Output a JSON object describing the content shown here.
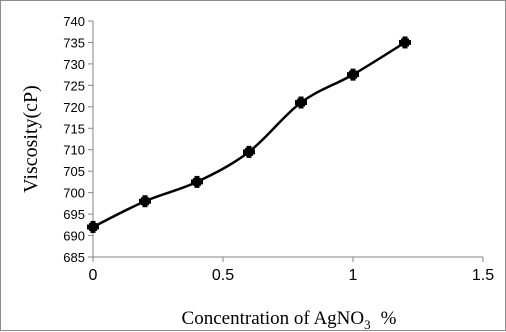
{
  "chart_data": {
    "type": "line",
    "title": "",
    "xlabel": {
      "prefix": "Concentration of AgNO",
      "subscript": "3",
      "suffix": "%"
    },
    "ylabel": "Viscosity(cP)",
    "xlim": [
      0,
      1.5
    ],
    "ylim": [
      685,
      740
    ],
    "x_ticks": [
      0,
      0.5,
      1,
      1.5
    ],
    "x_tick_labels": [
      "0",
      "0.5",
      "1",
      "1.5"
    ],
    "y_ticks": [
      685,
      690,
      695,
      700,
      705,
      710,
      715,
      720,
      725,
      730,
      735,
      740
    ],
    "y_tick_labels": [
      "685",
      "690",
      "695",
      "700",
      "705",
      "710",
      "715",
      "720",
      "725",
      "730",
      "735",
      "740"
    ],
    "grid": false,
    "legend": "none",
    "series": [
      {
        "x": [
          0,
          0.2,
          0.4,
          0.6,
          0.8,
          1.0,
          1.2
        ],
        "y": [
          692,
          698,
          702.5,
          709.5,
          721,
          727.5,
          735
        ],
        "marker": "plus-filled",
        "color": "#000000",
        "smooth": true
      }
    ]
  }
}
